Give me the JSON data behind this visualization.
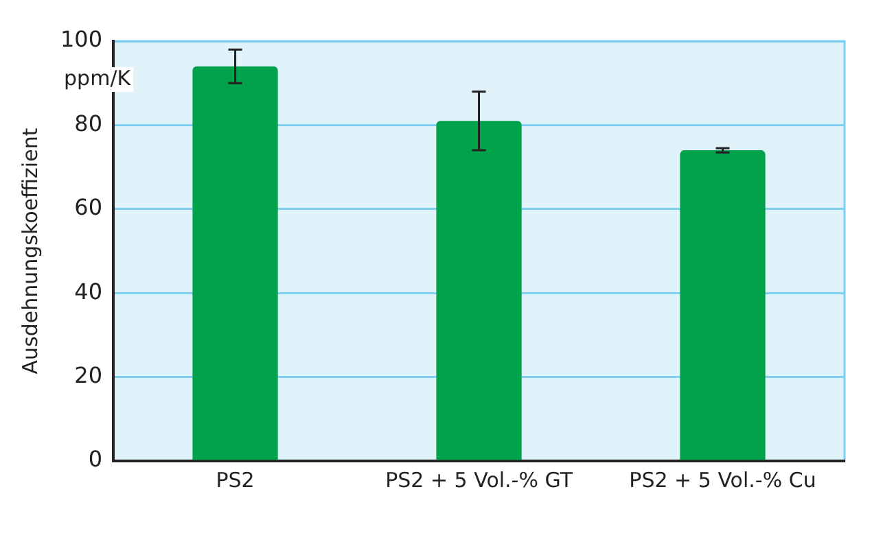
{
  "chart_data": {
    "type": "bar",
    "ylabel": "Ausdehnungskoeffizient",
    "annotations": [
      "ppm/K"
    ],
    "categories": [
      "PS2",
      "PS2 + 5 Vol.-% GT",
      "PS2 + 5 Vol.-% Cu"
    ],
    "values": [
      94,
      81,
      74
    ],
    "errors": [
      4,
      7,
      0.5
    ],
    "color": "#00a24b",
    "ylim": [
      0,
      100
    ],
    "yticks": [
      0,
      20,
      40,
      60,
      80,
      100
    ],
    "grid": "y",
    "legend": false
  }
}
